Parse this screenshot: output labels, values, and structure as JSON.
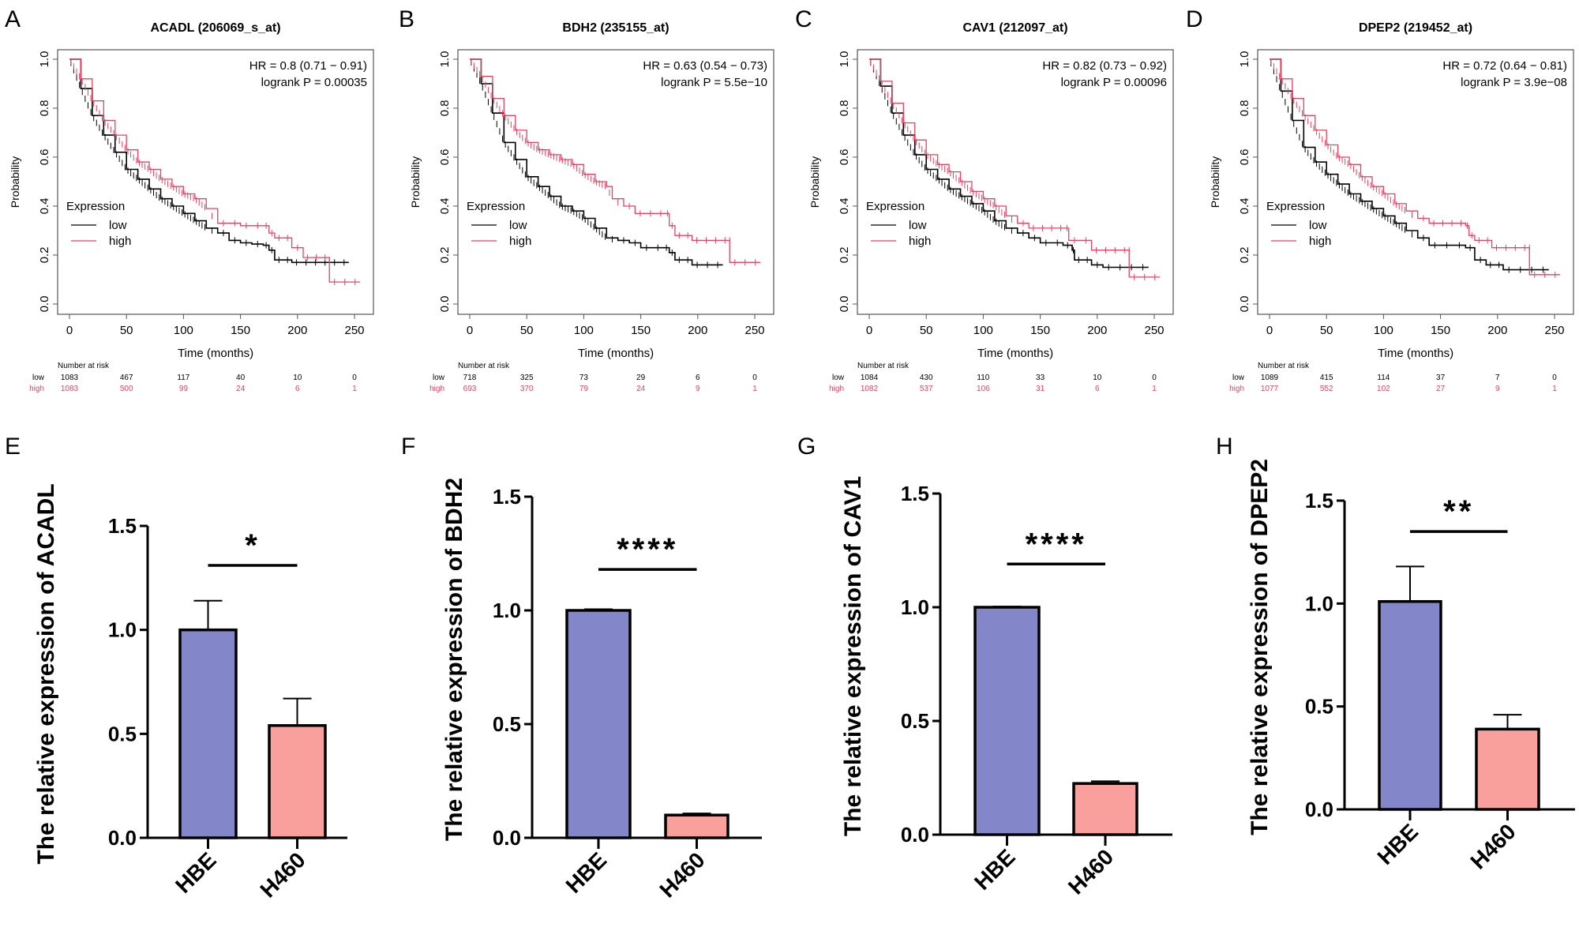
{
  "figure": {
    "colors": {
      "low": "#000000",
      "high": "#e8415f",
      "hbe": "#8387c9",
      "h460": "#f9a09d",
      "axis": "#000000",
      "box": "#555555"
    }
  },
  "chart_data": [
    {
      "panel": "A",
      "type": "line",
      "subtype": "kaplan-meier",
      "title": "ACADL (206069_s_at)",
      "xlabel": "Time (months)",
      "ylabel": "Probability",
      "xlim": [
        0,
        250
      ],
      "ylim": [
        0,
        1
      ],
      "xticks": [
        "0",
        "50",
        "100",
        "150",
        "200",
        "250"
      ],
      "yticks": [
        "0.0",
        "0.2",
        "0.4",
        "0.6",
        "0.8",
        "1.0"
      ],
      "annotation": [
        "HR = 0.8 (0.71 − 0.91)",
        "logrank P = 0.00035"
      ],
      "legend": {
        "title": "Expression",
        "entries": [
          "low",
          "high"
        ],
        "placement": "bottom-left"
      },
      "series": [
        {
          "name": "low",
          "x": [
            0,
            10,
            20,
            30,
            40,
            50,
            60,
            70,
            80,
            90,
            100,
            110,
            120,
            130,
            140,
            150,
            160,
            170,
            175,
            180,
            195,
            245
          ],
          "y": [
            1,
            0.88,
            0.77,
            0.69,
            0.62,
            0.55,
            0.51,
            0.47,
            0.43,
            0.4,
            0.37,
            0.34,
            0.31,
            0.29,
            0.26,
            0.25,
            0.245,
            0.24,
            0.22,
            0.18,
            0.17,
            0.17
          ]
        },
        {
          "name": "high",
          "x": [
            0,
            10,
            20,
            30,
            40,
            50,
            60,
            70,
            80,
            90,
            100,
            110,
            120,
            130,
            150,
            170,
            175,
            180,
            195,
            205,
            228,
            228,
            255
          ],
          "y": [
            1,
            0.92,
            0.83,
            0.75,
            0.69,
            0.63,
            0.58,
            0.55,
            0.51,
            0.48,
            0.45,
            0.43,
            0.39,
            0.33,
            0.32,
            0.32,
            0.29,
            0.27,
            0.23,
            0.19,
            0.18,
            0.09,
            0.09
          ]
        }
      ],
      "risk_table": {
        "header": "Number at risk",
        "times": [
          0,
          50,
          100,
          150,
          200,
          250
        ],
        "rows": [
          {
            "label": "low",
            "values": [
              "1083",
              "467",
              "117",
              "40",
              "10",
              "0"
            ]
          },
          {
            "label": "high",
            "values": [
              "1083",
              "500",
              "99",
              "24",
              "6",
              "1"
            ]
          }
        ]
      }
    },
    {
      "panel": "B",
      "type": "line",
      "subtype": "kaplan-meier",
      "title": "BDH2 (235155_at)",
      "xlabel": "Time (months)",
      "ylabel": "Probability",
      "xlim": [
        0,
        250
      ],
      "ylim": [
        0,
        1
      ],
      "xticks": [
        "0",
        "50",
        "100",
        "150",
        "200",
        "250"
      ],
      "yticks": [
        "0.0",
        "0.2",
        "0.4",
        "0.6",
        "0.8",
        "1.0"
      ],
      "annotation": [
        "HR = 0.63 (0.54 − 0.73)",
        "logrank P = 5.5e−10"
      ],
      "legend": {
        "title": "Expression",
        "entries": [
          "low",
          "high"
        ],
        "placement": "bottom-left"
      },
      "series": [
        {
          "name": "low",
          "x": [
            0,
            10,
            20,
            30,
            40,
            50,
            60,
            70,
            80,
            90,
            100,
            110,
            120,
            130,
            140,
            150,
            170,
            175,
            180,
            195,
            222
          ],
          "y": [
            1,
            0.9,
            0.78,
            0.66,
            0.59,
            0.52,
            0.48,
            0.44,
            0.4,
            0.38,
            0.35,
            0.31,
            0.27,
            0.26,
            0.25,
            0.23,
            0.23,
            0.21,
            0.18,
            0.16,
            0.16
          ]
        },
        {
          "name": "high",
          "x": [
            0,
            10,
            20,
            30,
            40,
            50,
            60,
            70,
            80,
            90,
            100,
            110,
            120,
            125,
            135,
            145,
            172,
            175,
            180,
            195,
            228,
            228,
            255
          ],
          "y": [
            1,
            0.93,
            0.84,
            0.77,
            0.71,
            0.66,
            0.63,
            0.61,
            0.59,
            0.57,
            0.53,
            0.5,
            0.48,
            0.43,
            0.4,
            0.37,
            0.37,
            0.32,
            0.28,
            0.26,
            0.26,
            0.17,
            0.17
          ]
        }
      ],
      "risk_table": {
        "header": "Number at risk",
        "times": [
          0,
          50,
          100,
          150,
          200,
          250
        ],
        "rows": [
          {
            "label": "low",
            "values": [
              "718",
              "325",
              "73",
              "29",
              "6",
              "0"
            ]
          },
          {
            "label": "high",
            "values": [
              "693",
              "370",
              "79",
              "24",
              "9",
              "1"
            ]
          }
        ]
      }
    },
    {
      "panel": "C",
      "type": "line",
      "subtype": "kaplan-meier",
      "title": "CAV1 (212097_at)",
      "xlabel": "Time (months)",
      "ylabel": "Probability",
      "xlim": [
        0,
        250
      ],
      "ylim": [
        0,
        1
      ],
      "xticks": [
        "0",
        "50",
        "100",
        "150",
        "200",
        "250"
      ],
      "yticks": [
        "0.0",
        "0.2",
        "0.4",
        "0.6",
        "0.8",
        "1.0"
      ],
      "annotation": [
        "HR = 0.82 (0.73 − 0.92)",
        "logrank P = 0.00096"
      ],
      "legend": {
        "title": "Expression",
        "entries": [
          "low",
          "high"
        ],
        "placement": "bottom-left"
      },
      "series": [
        {
          "name": "low",
          "x": [
            0,
            10,
            20,
            30,
            40,
            50,
            60,
            70,
            80,
            90,
            100,
            110,
            120,
            130,
            140,
            150,
            170,
            178,
            180,
            195,
            205,
            245
          ],
          "y": [
            1,
            0.89,
            0.78,
            0.69,
            0.61,
            0.55,
            0.51,
            0.47,
            0.44,
            0.41,
            0.38,
            0.34,
            0.31,
            0.29,
            0.27,
            0.25,
            0.24,
            0.22,
            0.18,
            0.16,
            0.15,
            0.15
          ]
        },
        {
          "name": "high",
          "x": [
            0,
            10,
            20,
            30,
            40,
            50,
            60,
            70,
            80,
            90,
            100,
            110,
            120,
            130,
            140,
            172,
            175,
            195,
            228,
            228,
            255
          ],
          "y": [
            1,
            0.91,
            0.82,
            0.74,
            0.67,
            0.61,
            0.57,
            0.54,
            0.5,
            0.46,
            0.43,
            0.4,
            0.36,
            0.33,
            0.31,
            0.31,
            0.26,
            0.22,
            0.22,
            0.11,
            0.11
          ]
        }
      ],
      "risk_table": {
        "header": "Number at risk",
        "times": [
          0,
          50,
          100,
          150,
          200,
          250
        ],
        "rows": [
          {
            "label": "low",
            "values": [
              "1084",
              "430",
              "110",
              "33",
              "10",
              "0"
            ]
          },
          {
            "label": "high",
            "values": [
              "1082",
              "537",
              "106",
              "31",
              "6",
              "1"
            ]
          }
        ]
      }
    },
    {
      "panel": "D",
      "type": "line",
      "subtype": "kaplan-meier",
      "title": "DPEP2 (219452_at)",
      "xlabel": "Time (months)",
      "ylabel": "Probability",
      "xlim": [
        0,
        250
      ],
      "ylim": [
        0,
        1
      ],
      "xticks": [
        "0",
        "50",
        "100",
        "150",
        "200",
        "250"
      ],
      "yticks": [
        "0.0",
        "0.2",
        "0.4",
        "0.6",
        "0.8",
        "1.0"
      ],
      "annotation": [
        "HR = 0.72 (0.64 − 0.81)",
        "logrank P = 3.9e−08"
      ],
      "legend": {
        "title": "Expression",
        "entries": [
          "low",
          "high"
        ],
        "placement": "bottom-left"
      },
      "series": [
        {
          "name": "low",
          "x": [
            0,
            10,
            20,
            30,
            40,
            50,
            60,
            70,
            80,
            90,
            100,
            110,
            120,
            130,
            140,
            150,
            172,
            180,
            190,
            205,
            245
          ],
          "y": [
            1,
            0.87,
            0.75,
            0.64,
            0.58,
            0.53,
            0.49,
            0.45,
            0.42,
            0.39,
            0.36,
            0.33,
            0.3,
            0.27,
            0.24,
            0.24,
            0.23,
            0.18,
            0.16,
            0.14,
            0.14
          ]
        },
        {
          "name": "high",
          "x": [
            0,
            10,
            20,
            30,
            40,
            50,
            60,
            70,
            80,
            90,
            100,
            110,
            120,
            130,
            140,
            172,
            175,
            180,
            195,
            228,
            228,
            255
          ],
          "y": [
            1,
            0.92,
            0.84,
            0.77,
            0.71,
            0.65,
            0.6,
            0.57,
            0.52,
            0.48,
            0.45,
            0.41,
            0.38,
            0.35,
            0.33,
            0.32,
            0.28,
            0.26,
            0.23,
            0.23,
            0.12,
            0.12
          ]
        }
      ],
      "risk_table": {
        "header": "Number at risk",
        "times": [
          0,
          50,
          100,
          150,
          200,
          250
        ],
        "rows": [
          {
            "label": "low",
            "values": [
              "1089",
              "415",
              "114",
              "37",
              "7",
              "0"
            ]
          },
          {
            "label": "high",
            "values": [
              "1077",
              "552",
              "102",
              "27",
              "9",
              "1"
            ]
          }
        ]
      }
    },
    {
      "panel": "E",
      "type": "bar",
      "ylabel": "The relative expression of ACADL",
      "categories": [
        "HBE",
        "H460"
      ],
      "values": [
        1.0,
        0.54
      ],
      "errors": [
        0.14,
        0.13
      ],
      "ylim": [
        0,
        1.5
      ],
      "yticks": [
        "0.0",
        "0.5",
        "1.0",
        "1.5"
      ],
      "significance": "*",
      "sig_level": 1.31
    },
    {
      "panel": "F",
      "type": "bar",
      "ylabel": "The relative expression of BDH2",
      "categories": [
        "HBE",
        "H460"
      ],
      "values": [
        1.0,
        0.1
      ],
      "errors": [
        0.005,
        0.007
      ],
      "ylim": [
        0,
        1.5
      ],
      "yticks": [
        "0.0",
        "0.5",
        "1.0",
        "1.5"
      ],
      "significance": "****",
      "sig_level": 1.18
    },
    {
      "panel": "G",
      "type": "bar",
      "ylabel": "The relative expression of CAV1",
      "categories": [
        "HBE",
        "H460"
      ],
      "values": [
        1.0,
        0.225
      ],
      "errors": [
        0.003,
        0.01
      ],
      "ylim": [
        0,
        1.5
      ],
      "yticks": [
        "0.0",
        "0.5",
        "1.0",
        "1.5"
      ],
      "significance": "****",
      "sig_level": 1.19
    },
    {
      "panel": "H",
      "type": "bar",
      "ylabel": "The relative expression of DPEP2",
      "categories": [
        "HBE",
        "H460"
      ],
      "values": [
        1.01,
        0.39
      ],
      "errors": [
        0.17,
        0.07
      ],
      "ylim": [
        0,
        1.5
      ],
      "yticks": [
        "0.0",
        "0.5",
        "1.0",
        "1.5"
      ],
      "significance": "**",
      "sig_level": 1.35
    }
  ]
}
